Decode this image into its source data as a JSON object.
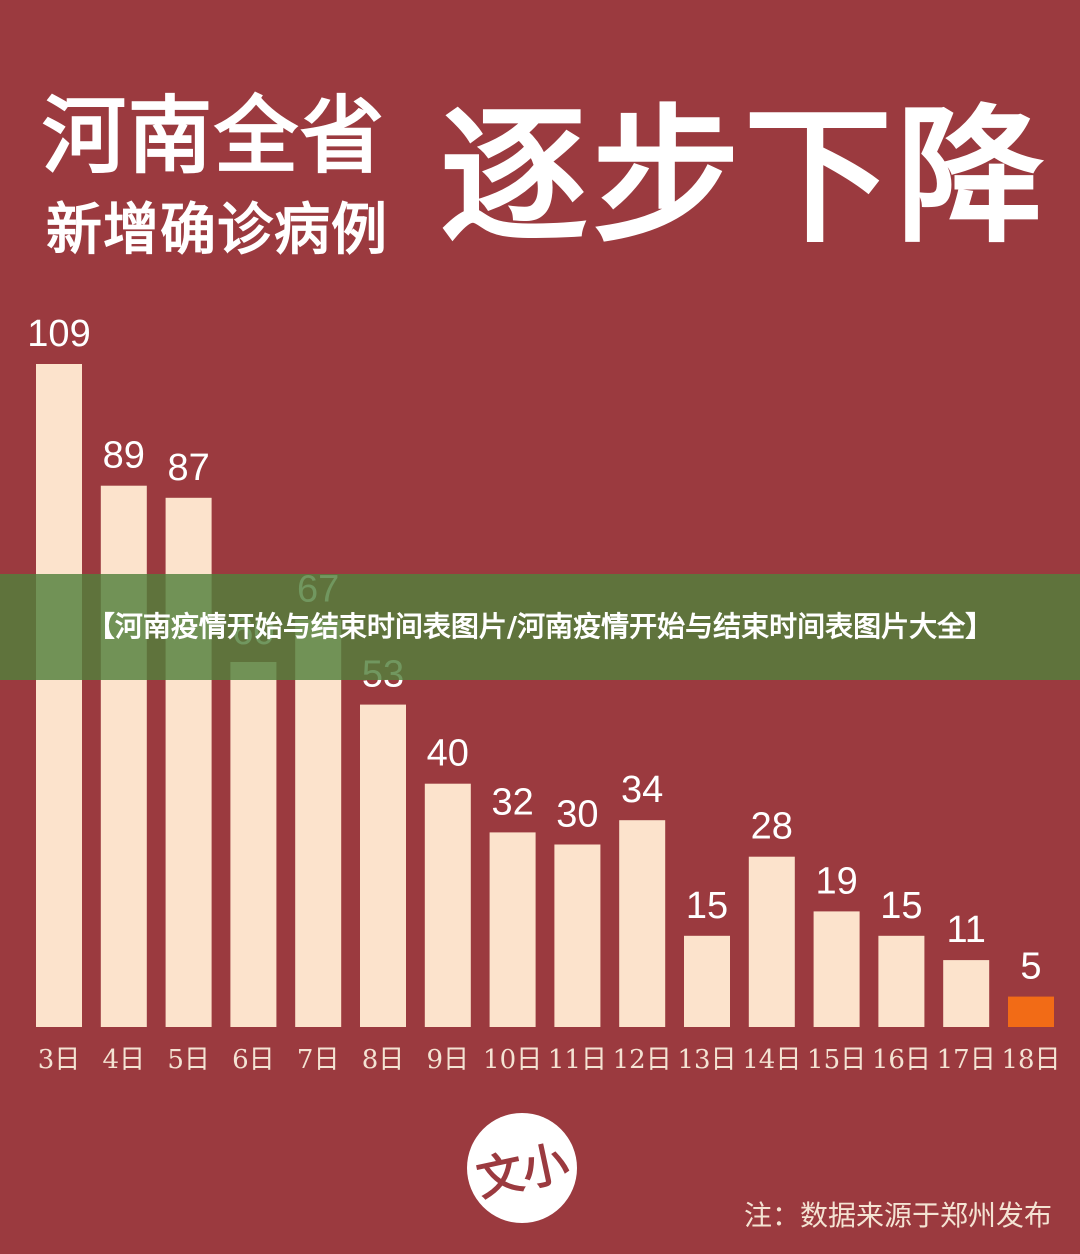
{
  "header": {
    "title_line1": "河南全省",
    "title_line2": "新增确诊病例",
    "title_big": "逐步下降"
  },
  "banner": {
    "text": "【河南疫情开始与结束时间表图片/河南疫情开始与结束时间表图片大全】"
  },
  "logo": {
    "text": "文小"
  },
  "footer": {
    "note": "注：数据来源于郑州发布"
  },
  "colors": {
    "background": "#9b3a3f",
    "bar": "#fce3cc",
    "highlight_bar": "#f26b16",
    "label": "#ffffff",
    "axis_label": "#f4e3d3"
  },
  "chart_data": {
    "type": "bar",
    "title": "河南全省新增确诊病例逐步下降",
    "xlabel": "",
    "ylabel": "",
    "categories": [
      "3日",
      "4日",
      "5日",
      "6日",
      "7日",
      "8日",
      "9日",
      "10日",
      "11日",
      "12日",
      "13日",
      "14日",
      "15日",
      "16日",
      "17日",
      "18日"
    ],
    "values": [
      109,
      89,
      87,
      60,
      67,
      53,
      40,
      32,
      30,
      34,
      15,
      28,
      19,
      15,
      11,
      5
    ],
    "highlight_index": 15,
    "ylim": [
      0,
      109
    ],
    "grid": false,
    "data_labels": true
  }
}
